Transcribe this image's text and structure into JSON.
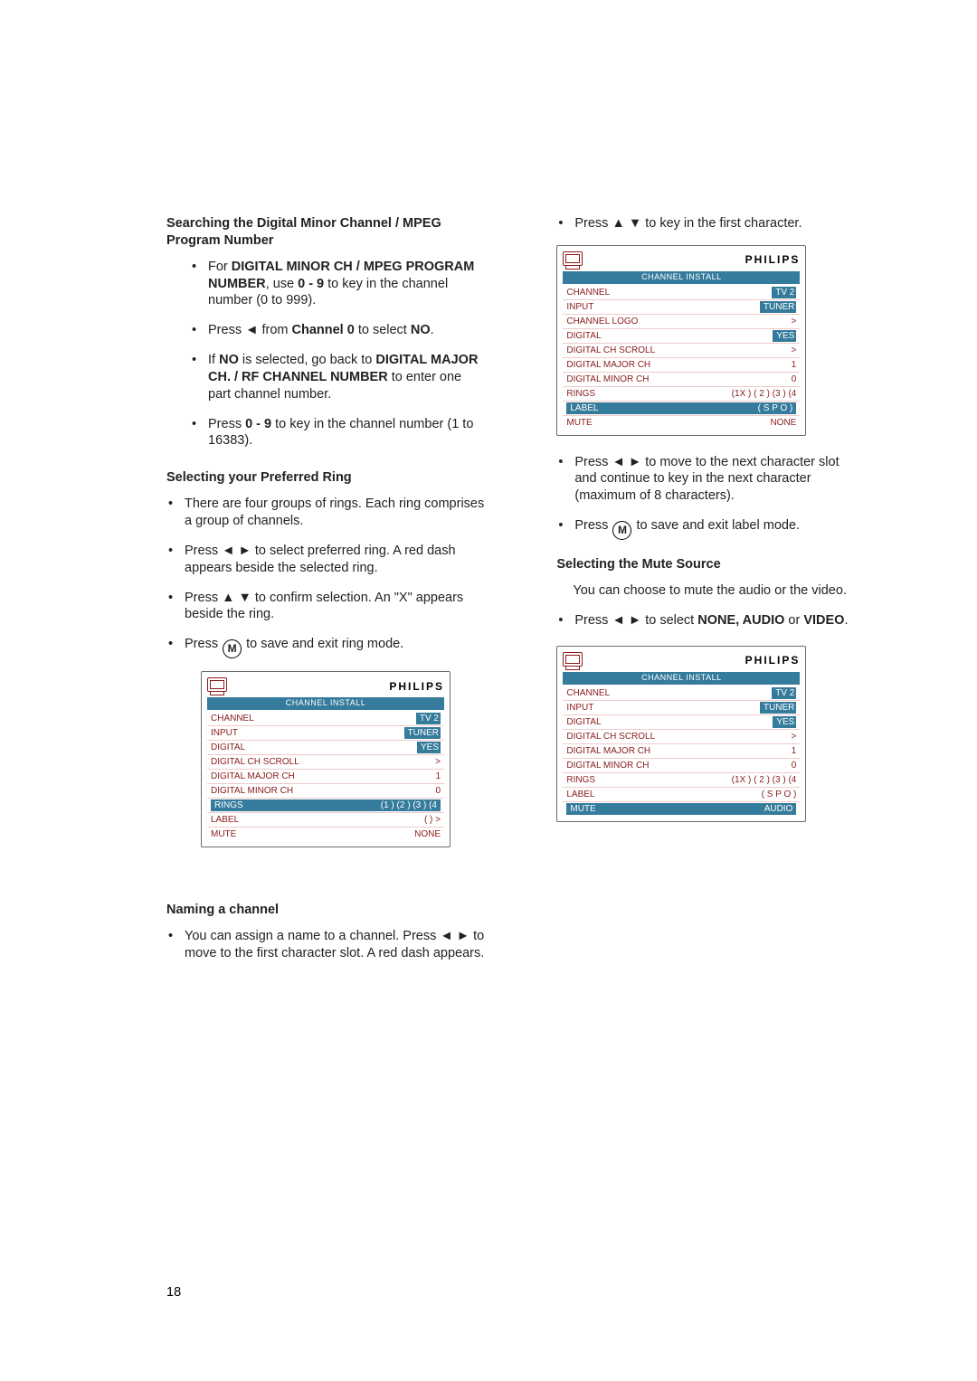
{
  "page_number": "18",
  "left": {
    "heading1": "Searching the Digital Minor Channel / MPEG Program Number",
    "sub1_a": "For ",
    "sub1_b": "DIGITAL MINOR CH / MPEG PROGRAM NUMBER",
    "sub1_c": ", use ",
    "sub1_d": "0 - 9",
    "sub1_e": " to key in the channel number (0 to 999).",
    "sub2_a": "Press ◄ from ",
    "sub2_b": "Channel 0",
    "sub2_c": " to select ",
    "sub2_d": "NO",
    "sub2_e": ".",
    "sub3_a": "If ",
    "sub3_b": "NO",
    "sub3_c": " is selected, go back to ",
    "sub3_d": "DIGITAL MAJOR CH. / RF CHANNEL NUMBER",
    "sub3_e": " to enter one part channel number.",
    "sub4_a": "Press ",
    "sub4_b": "0 - 9",
    "sub4_c": " to key in the channel number (1 to 16383).",
    "heading2": "Selecting your Preferred Ring",
    "b1": "There are four groups of rings. Each ring comprises a group of channels.",
    "b2": "Press ◄ ► to select preferred ring. A red dash appears beside the selected ring.",
    "b3": "Press ▲ ▼ to confirm selection. An \"X\" appears beside the ring.",
    "b4_a": "Press ",
    "b4_b": " to save and exit ring mode.",
    "heading3": "Naming a channel",
    "nc": "You can assign a name to a channel. Press ◄ ► to move to the first character slot. A red dash appears."
  },
  "right": {
    "b1": "Press ▲ ▼ to key in the first character.",
    "b2": "Press ◄ ► to move to the next character slot and continue to key in the next character (maximum of 8 characters).",
    "b3_a": "Press ",
    "b3_b": " to save and exit label mode.",
    "heading1": "Selecting the Mute Source",
    "p1": "You can choose to mute the audio or the video.",
    "b4_a": "Press ◄ ► to select ",
    "b4_b": "NONE, AUDIO",
    "b4_c": " or ",
    "b4_d": "VIDEO",
    "b4_e": "."
  },
  "menu": {
    "brand": "PHILIPS",
    "title": "CHANNEL INSTALL",
    "rows_common": [
      {
        "k": "CHANNEL",
        "v": "TV 2"
      },
      {
        "k": "INPUT",
        "v": "TUNER"
      }
    ],
    "m1": {
      "rows": [
        {
          "k": "CHANNEL",
          "v": "TV 2",
          "vhl": true
        },
        {
          "k": "INPUT",
          "v": "TUNER",
          "vhl": true
        },
        {
          "k": "DIGITAL",
          "v": "YES",
          "vhl": true
        },
        {
          "k": "DIGITAL CH SCROLL",
          "v": ">"
        },
        {
          "k": "DIGITAL MAJOR CH",
          "v": "1"
        },
        {
          "k": "DIGITAL MINOR CH",
          "v": "0"
        },
        {
          "k": "RINGS",
          "v": "(1 ) (2 ) (3  ) (4",
          "hl": true,
          "vhl": true
        },
        {
          "k": "LABEL",
          "v": "(              )  >"
        },
        {
          "k": "MUTE",
          "v": "NONE"
        }
      ]
    },
    "m2": {
      "rows": [
        {
          "k": "CHANNEL",
          "v": "TV 2",
          "vhl": true
        },
        {
          "k": "INPUT",
          "v": "TUNER",
          "vhl": true
        },
        {
          "k": "CHANNEL LOGO",
          "v": ">"
        },
        {
          "k": "DIGITAL",
          "v": "YES",
          "vhl": true
        },
        {
          "k": "DIGITAL CH SCROLL",
          "v": ">"
        },
        {
          "k": "DIGITAL MAJOR CH",
          "v": "1"
        },
        {
          "k": "DIGITAL MINOR CH",
          "v": "0"
        },
        {
          "k": "RINGS",
          "v": "(1X ) ( 2 ) (3 ) (4"
        },
        {
          "k": "LABEL",
          "v": "( S P O           )",
          "hl": true,
          "vhl": true
        },
        {
          "k": "MUTE",
          "v": "NONE"
        }
      ]
    },
    "m3": {
      "rows": [
        {
          "k": "CHANNEL",
          "v": "TV 2",
          "vhl": true
        },
        {
          "k": "INPUT",
          "v": "TUNER",
          "vhl": true
        },
        {
          "k": "DIGITAL",
          "v": "YES",
          "vhl": true
        },
        {
          "k": "DIGITAL CH SCROLL",
          "v": ">"
        },
        {
          "k": "DIGITAL MAJOR CH",
          "v": "1"
        },
        {
          "k": "DIGITAL MINOR CH",
          "v": "0"
        },
        {
          "k": "RINGS",
          "v": "(1X ) ( 2 ) (3 ) (4"
        },
        {
          "k": "LABEL",
          "v": "( S P O           )"
        },
        {
          "k": "MUTE",
          "v": "AUDIO",
          "hl": true,
          "vhl": true
        }
      ]
    }
  }
}
